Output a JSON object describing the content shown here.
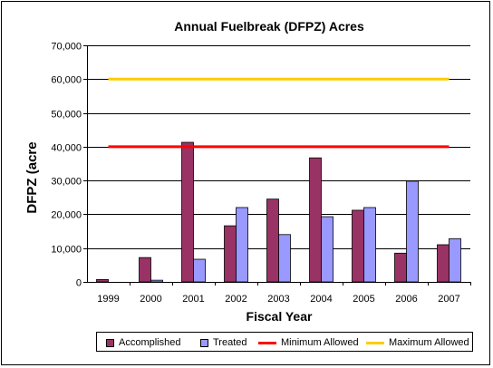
{
  "chart_data": {
    "type": "bar",
    "title": "Annual Fuelbreak (DFPZ) Acres",
    "xlabel": "Fiscal Year",
    "ylabel": "DFPZ (acre",
    "categories": [
      "1999",
      "2000",
      "2001",
      "2002",
      "2003",
      "2004",
      "2005",
      "2006",
      "2007"
    ],
    "ylim": [
      0,
      70000
    ],
    "yticks": [
      0,
      10000,
      20000,
      30000,
      40000,
      50000,
      60000,
      70000
    ],
    "ytick_labels": [
      "0",
      "10,000",
      "20,000",
      "30,000",
      "40,000",
      "50,000",
      "60,000",
      "70,000"
    ],
    "grid": true,
    "legend_position": "bottom",
    "series": [
      {
        "name": "Accomplished",
        "kind": "bar",
        "color": "#993366",
        "values": [
          700,
          7200,
          41300,
          16600,
          24500,
          36700,
          21200,
          8500,
          11000
        ]
      },
      {
        "name": "Treated",
        "kind": "bar",
        "color": "#9999ff",
        "values": [
          0,
          500,
          6700,
          22000,
          14000,
          19300,
          22000,
          29800,
          12800
        ]
      },
      {
        "name": "Minimum Allowed",
        "kind": "line",
        "color": "#ff0000",
        "values": [
          40000,
          40000,
          40000,
          40000,
          40000,
          40000,
          40000,
          40000,
          40000
        ]
      },
      {
        "name": "Maximum Allowed",
        "kind": "line",
        "color": "#ffcc00",
        "values": [
          60000,
          60000,
          60000,
          60000,
          60000,
          60000,
          60000,
          60000,
          60000
        ]
      }
    ]
  }
}
